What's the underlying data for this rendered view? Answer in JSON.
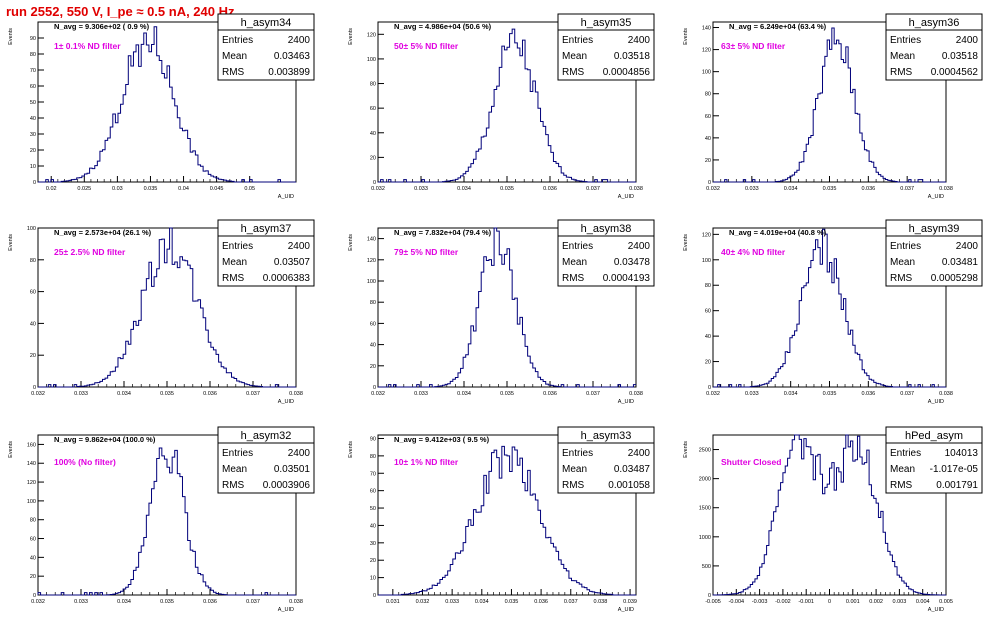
{
  "title": "run 2552,   550 V, I_pe ≈ 0.5 nA, 240 Hz",
  "stats_labels": {
    "entries": "Entries",
    "mean": "Mean",
    "rms": "RMS"
  },
  "y_axis_label": "Events",
  "x_axis_label": "A_UID",
  "line_color": "#00007a",
  "annot_color": "#e000e0",
  "chart_data": [
    {
      "type": "histogram",
      "name": "h_asym34",
      "navg": "N_avg = 9.306e+02 ( 0.9 %)",
      "annotation": "1± 0.1% ND filter",
      "entries": "2400",
      "mean": "0.03463",
      "rms": "0.003899",
      "xlim": [
        0.018,
        0.057
      ],
      "ylim": [
        0,
        100
      ],
      "xticks": [
        "0.02",
        "0.025",
        "0.03",
        "0.035",
        "0.04",
        "0.045",
        "0.05"
      ],
      "yticks": [
        "0",
        "10",
        "20",
        "30",
        "40",
        "50",
        "60",
        "70",
        "80",
        "90"
      ],
      "peak": 96,
      "center": 0.0346,
      "width": 0.0039,
      "bimodal": false
    },
    {
      "type": "histogram",
      "name": "h_asym35",
      "navg": "N_avg = 4.986e+04 (50.6 %)",
      "annotation": "50± 5% ND filter",
      "entries": "2400",
      "mean": "0.03518",
      "rms": "0.0004856",
      "xlim": [
        0.032,
        0.038
      ],
      "ylim": [
        0,
        130
      ],
      "xticks": [
        "0.032",
        "0.033",
        "0.034",
        "0.035",
        "0.036",
        "0.037",
        "0.038"
      ],
      "yticks": [
        "0",
        "20",
        "40",
        "60",
        "80",
        "100",
        "120"
      ],
      "peak": 122,
      "center": 0.03518,
      "width": 0.000486,
      "bimodal": false
    },
    {
      "type": "histogram",
      "name": "h_asym36",
      "navg": "N_avg = 6.249e+04 (63.4 %)",
      "annotation": "63± 5% ND filter",
      "entries": "2400",
      "mean": "0.03518",
      "rms": "0.0004562",
      "xlim": [
        0.032,
        0.038
      ],
      "ylim": [
        0,
        145
      ],
      "xticks": [
        "0.032",
        "0.033",
        "0.034",
        "0.035",
        "0.036",
        "0.037",
        "0.038"
      ],
      "yticks": [
        "0",
        "20",
        "40",
        "60",
        "80",
        "100",
        "120",
        "140"
      ],
      "peak": 138,
      "center": 0.03518,
      "width": 0.000456,
      "bimodal": false
    },
    {
      "type": "histogram",
      "name": "h_asym37",
      "navg": "N_avg = 2.573e+04 (26.1 %)",
      "annotation": "25± 2.5% ND filter",
      "entries": "2400",
      "mean": "0.03507",
      "rms": "0.0006383",
      "xlim": [
        0.032,
        0.038
      ],
      "ylim": [
        0,
        100
      ],
      "xticks": [
        "0.032",
        "0.033",
        "0.034",
        "0.035",
        "0.036",
        "0.037",
        "0.038"
      ],
      "yticks": [
        "0",
        "20",
        "40",
        "60",
        "80",
        "100"
      ],
      "peak": 97,
      "center": 0.03507,
      "width": 0.000638,
      "bimodal": false
    },
    {
      "type": "histogram",
      "name": "h_asym38",
      "navg": "N_avg = 7.832e+04 (79.4 %)",
      "annotation": "79± 5% ND filter",
      "entries": "2400",
      "mean": "0.03478",
      "rms": "0.0004193",
      "xlim": [
        0.032,
        0.038
      ],
      "ylim": [
        0,
        150
      ],
      "xticks": [
        "0.032",
        "0.033",
        "0.034",
        "0.035",
        "0.036",
        "0.037",
        "0.038"
      ],
      "yticks": [
        "0",
        "20",
        "40",
        "60",
        "80",
        "100",
        "120",
        "140"
      ],
      "peak": 148,
      "center": 0.03478,
      "width": 0.000419,
      "bimodal": false
    },
    {
      "type": "histogram",
      "name": "h_asym39",
      "navg": "N_avg = 4.019e+04 (40.8 %)",
      "annotation": "40± 4% ND filter",
      "entries": "2400",
      "mean": "0.03481",
      "rms": "0.0005298",
      "xlim": [
        0.032,
        0.038
      ],
      "ylim": [
        0,
        125
      ],
      "xticks": [
        "0.032",
        "0.033",
        "0.034",
        "0.035",
        "0.036",
        "0.037",
        "0.038"
      ],
      "yticks": [
        "0",
        "20",
        "40",
        "60",
        "80",
        "100",
        "120"
      ],
      "peak": 120,
      "center": 0.03481,
      "width": 0.00053,
      "bimodal": false
    },
    {
      "type": "histogram",
      "name": "h_asym32",
      "navg": "N_avg = 9.862e+04 (100.0 %)",
      "annotation": "100% (No filter)",
      "entries": "2400",
      "mean": "0.03501",
      "rms": "0.0003906",
      "xlim": [
        0.032,
        0.038
      ],
      "ylim": [
        0,
        170
      ],
      "xticks": [
        "0.032",
        "0.033",
        "0.034",
        "0.035",
        "0.036",
        "0.037",
        "0.038"
      ],
      "yticks": [
        "0",
        "20",
        "40",
        "60",
        "80",
        "100",
        "120",
        "140",
        "160"
      ],
      "peak": 168,
      "center": 0.03501,
      "width": 0.00039,
      "bimodal": false
    },
    {
      "type": "histogram",
      "name": "h_asym33",
      "navg": "N_avg = 9.412e+03 ( 9.5 %)",
      "annotation": "10± 1% ND filter",
      "entries": "2400",
      "mean": "0.03487",
      "rms": "0.001058",
      "xlim": [
        0.0305,
        0.0392
      ],
      "ylim": [
        0,
        92
      ],
      "xticks": [
        "0.031",
        "0.032",
        "0.033",
        "0.034",
        "0.035",
        "0.036",
        "0.037",
        "0.038",
        "0.039"
      ],
      "xtickvals": [
        0.031,
        0.032,
        0.033,
        0.034,
        0.035,
        0.036,
        0.037,
        0.038,
        0.039
      ],
      "yticks": [
        "0",
        "10",
        "20",
        "30",
        "40",
        "50",
        "60",
        "70",
        "80",
        "90"
      ],
      "peak": 88,
      "center": 0.03487,
      "width": 0.00106,
      "bimodal": false
    },
    {
      "type": "histogram",
      "name": "hPed_asym",
      "navg": "",
      "annotation": "Shutter Closed",
      "entries": "104013",
      "mean": "-1.017e-05",
      "rms": "0.001791",
      "xlim": [
        -0.005,
        0.005
      ],
      "ylim": [
        0,
        2750
      ],
      "xticks": [
        "-0.005",
        "-0.004",
        "-0.003",
        "-0.002",
        "-0.001",
        "0",
        "0.001",
        "0.002",
        "0.003",
        "0.004",
        "0.005"
      ],
      "xtickvals": [
        -0.005,
        -0.004,
        -0.003,
        -0.002,
        -0.001,
        0,
        0.001,
        0.002,
        0.003,
        0.004,
        0.005
      ],
      "yticks": [
        "0",
        "500",
        "1000",
        "1500",
        "2000",
        "2500"
      ],
      "ytickvals": [
        0,
        500,
        1000,
        1500,
        2000,
        2500
      ],
      "peak": 2600,
      "center": 0.0,
      "width": 0.0009,
      "bimodal": true,
      "modes": [
        -0.0013,
        0.0012
      ]
    }
  ]
}
